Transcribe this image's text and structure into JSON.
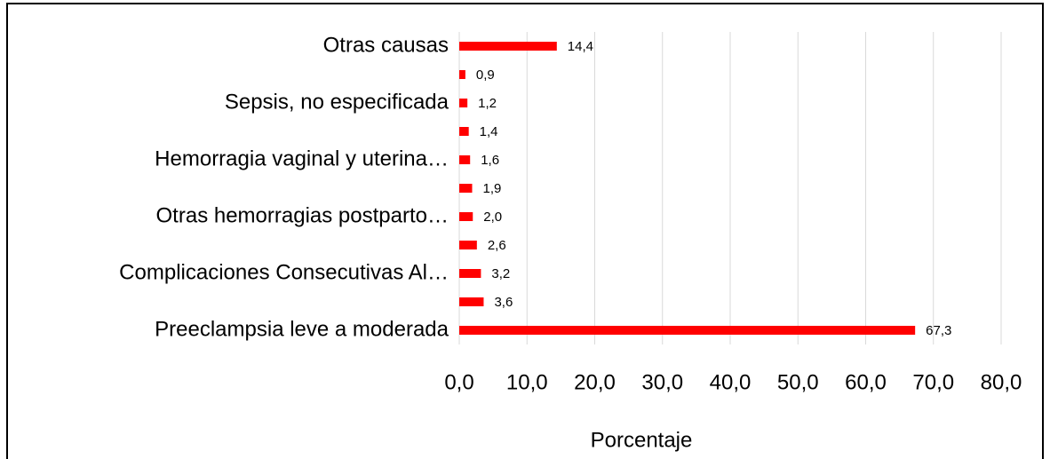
{
  "chart_data": {
    "type": "hbar",
    "x_label": "Porcentaje",
    "categories": [
      "Otras causas",
      null,
      "Sepsis, no especificada",
      null,
      "Hemorragia vaginal y uterina…",
      null,
      "Otras hemorragias postparto…",
      null,
      "Complicaciones Consecutivas Al…",
      null,
      "Preeclampsia leve a moderada"
    ],
    "values": [
      14.4,
      0.9,
      1.2,
      1.4,
      1.6,
      1.9,
      2.0,
      2.6,
      3.2,
      3.6,
      67.3
    ],
    "value_labels": [
      "14,4",
      "0,9",
      "1,2",
      "1,4",
      "1,6",
      "1,9",
      "2,0",
      "2,6",
      "3,2",
      "3,6",
      "67,3"
    ],
    "color": "#ff0000",
    "xlim": [
      0,
      80
    ],
    "xticks": [
      {
        "value": 0,
        "label": "0,0"
      },
      {
        "value": 10,
        "label": "10,0"
      },
      {
        "value": 20,
        "label": "20,0"
      },
      {
        "value": 30,
        "label": "30,0"
      },
      {
        "value": 40,
        "label": "40,0"
      },
      {
        "value": 50,
        "label": "50,0"
      },
      {
        "value": 60,
        "label": "60,0"
      },
      {
        "value": 70,
        "label": "70,0"
      },
      {
        "value": 80,
        "label": "80,0"
      }
    ],
    "grid": true
  }
}
